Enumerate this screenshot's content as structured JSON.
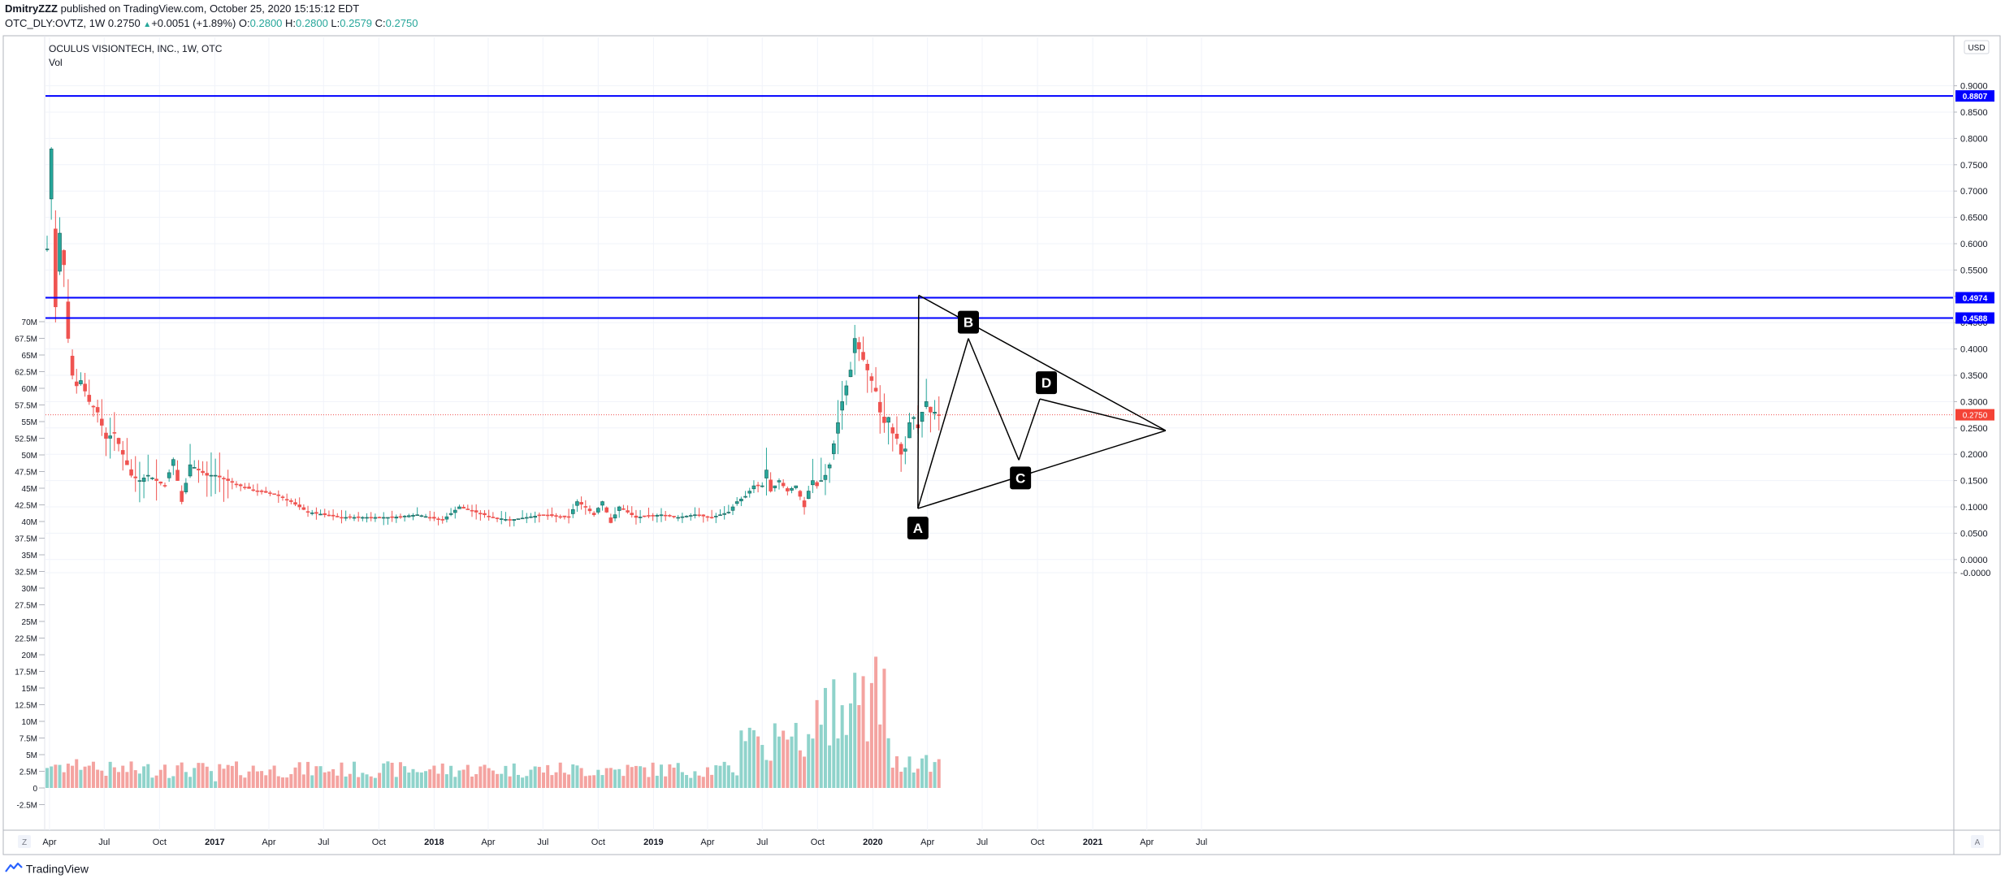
{
  "header": {
    "publisher": "DmitryZZZ",
    "published_text": "published on TradingView.com, October 25, 2020 15:15:12 EDT",
    "symbol": "OTC_DLY:OVTZ, 1W",
    "last": "0.2750",
    "change": "+0.0051 (+1.89%)",
    "o_label": "O:",
    "o": "0.2800",
    "h_label": "H:",
    "h": "0.2800",
    "l_label": "L:",
    "l": "0.2579",
    "c_label": "C:",
    "c": "0.2750"
  },
  "legend": {
    "title": "OCULUS VISIONTECH, INC., 1W, OTC",
    "vol": "Vol"
  },
  "currency_button": "USD",
  "corner_left": "Z",
  "corner_right": "A",
  "footer": {
    "brand": "TradingView"
  },
  "colors": {
    "up": "#26a69a",
    "down": "#ef5350",
    "vol_up": "#8fd3cb",
    "vol_down": "#f4a3a0",
    "hline": "#0000ff",
    "price_label": "#f44336"
  },
  "chart_data": {
    "type": "candlestick",
    "interval": "1W",
    "title": "OCULUS VISIONTECH, INC., 1W, OTC",
    "price_axis": {
      "ticks": [
        "0.9000",
        "0.8500",
        "0.8000",
        "0.7500",
        "0.7000",
        "0.6500",
        "0.6000",
        "0.5500",
        "0.5000",
        "0.4500",
        "0.4000",
        "0.3500",
        "0.3000",
        "0.2500",
        "0.2000",
        "0.1500",
        "0.1000",
        "0.0500",
        "0.0000",
        "-0.0000"
      ],
      "range": [
        -0.005,
        0.92
      ],
      "currency": "USD"
    },
    "volume_axis": {
      "ticks": [
        "70M",
        "67.5M",
        "65M",
        "62.5M",
        "60M",
        "57.5M",
        "55M",
        "52.5M",
        "50M",
        "47.5M",
        "45M",
        "42.5M",
        "40M",
        "37.5M",
        "35M",
        "32.5M",
        "30M",
        "27.5M",
        "25M",
        "22.5M",
        "20M",
        "17.5M",
        "15M",
        "12.5M",
        "10M",
        "7.5M",
        "5M",
        "2.5M",
        "0",
        "-2.5M"
      ]
    },
    "time_axis": {
      "ticks": [
        "Apr",
        "Jul",
        "Oct",
        "2017",
        "Apr",
        "Jul",
        "Oct",
        "2018",
        "Apr",
        "Jul",
        "Oct",
        "2019",
        "Apr",
        "Jul",
        "Oct",
        "2020",
        "Apr",
        "Jul",
        "Oct",
        "2021",
        "Apr",
        "Jul"
      ]
    },
    "horizontal_lines": [
      {
        "value": 0.8807,
        "label": "0.8807"
      },
      {
        "value": 0.4974,
        "label": "0.4974"
      },
      {
        "value": 0.4588,
        "label": "0.4588"
      }
    ],
    "last_price": {
      "value": 0.275,
      "label": "0.2750"
    },
    "pattern_points": [
      {
        "label": "A",
        "date": "2020-03-16",
        "price": 0.097
      },
      {
        "label": "B",
        "date": "2020-06-08",
        "price": 0.42
      },
      {
        "label": "C",
        "date": "2020-08-31",
        "price": 0.189
      },
      {
        "label": "D",
        "date": "2020-10-05",
        "price": 0.305
      }
    ]
  }
}
